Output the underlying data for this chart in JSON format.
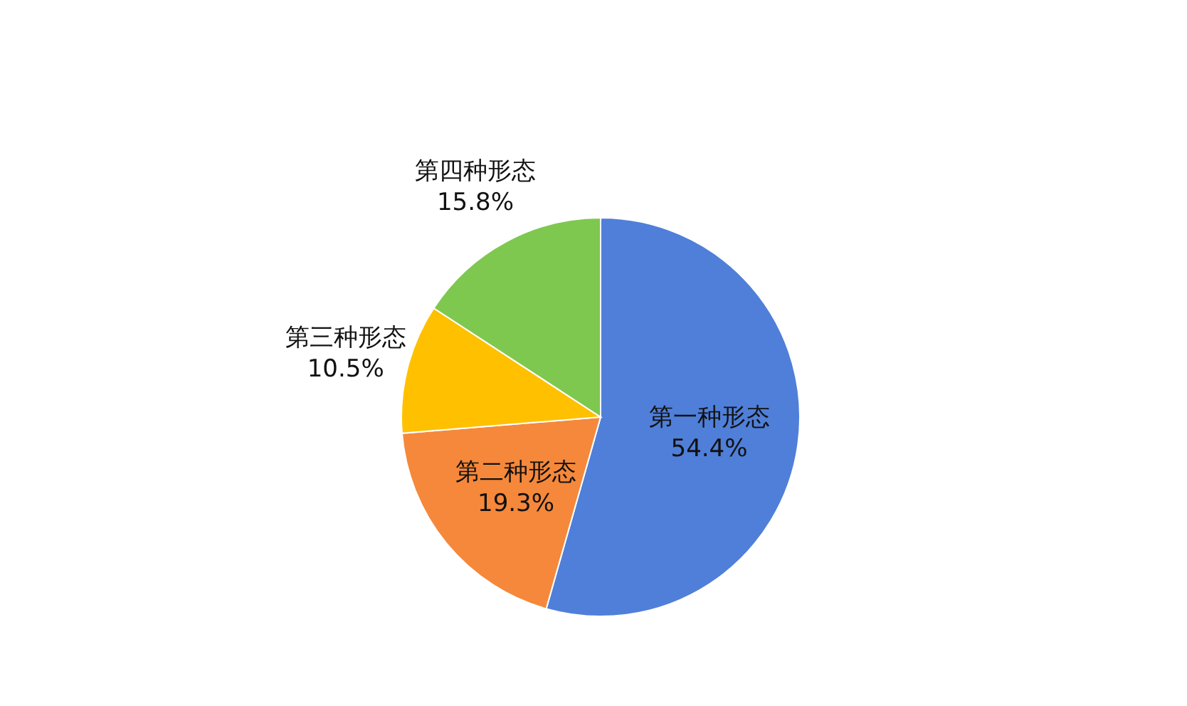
{
  "chart_data": {
    "type": "pie",
    "categories": [
      "第一种形态",
      "第二种形态",
      "第三种形态",
      "第四种形态"
    ],
    "values": [
      54.4,
      19.3,
      10.5,
      15.8
    ],
    "colors": [
      "#4f7fd9",
      "#f5883a",
      "#ffc000",
      "#7ec850"
    ],
    "value_labels": [
      "54.4%",
      "19.3%",
      "10.5%",
      "15.8%"
    ],
    "legend": false
  }
}
